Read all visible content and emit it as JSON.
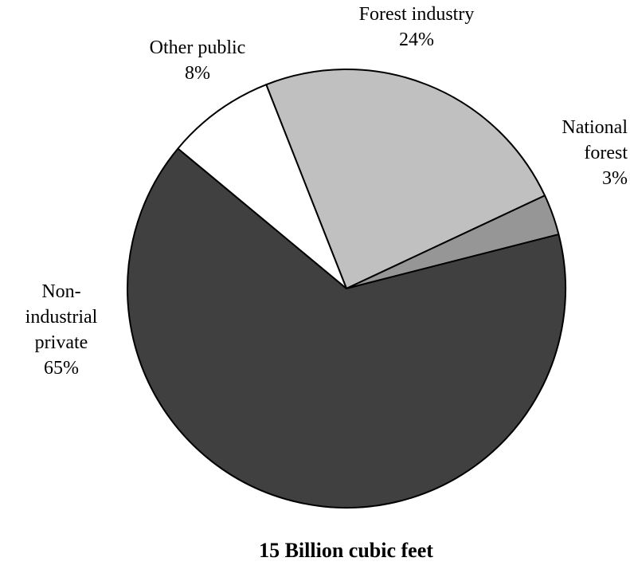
{
  "chart_data": {
    "type": "pie",
    "title": "15 Billion cubic feet",
    "slices": [
      {
        "label": "Forest industry",
        "value": 24,
        "display": "24%",
        "color": "#c0c0c0"
      },
      {
        "label": "National forest",
        "value": 3,
        "display": "3%",
        "color": "#969696"
      },
      {
        "label": "Non-industrial private",
        "value": 65,
        "display": "65%",
        "color": "#404040"
      },
      {
        "label": "Other public",
        "value": 8,
        "display": "8%",
        "color": "#ffffff"
      }
    ],
    "label_lines": {
      "forest_industry": [
        "Forest industry",
        "24%"
      ],
      "national_forest": [
        "National",
        "forest",
        "3%"
      ],
      "non_industrial_private": [
        "Non-",
        "industrial",
        "private",
        "65%"
      ],
      "other_public": [
        "Other public",
        "8%"
      ]
    }
  }
}
